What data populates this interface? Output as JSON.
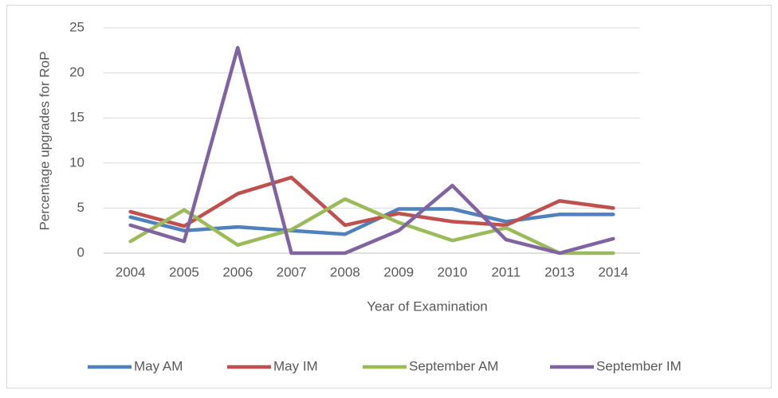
{
  "chart_data": {
    "type": "line",
    "x_label": "Year of Examination",
    "y_label": "Percentage upgrades for RoP",
    "categories": [
      "2004",
      "2005",
      "2006",
      "2007",
      "2008",
      "2009",
      "2010",
      "2011",
      "2013",
      "2014"
    ],
    "series": [
      {
        "name": "May AM",
        "color": "#4f81bd",
        "values": [
          4.0,
          2.5,
          2.9,
          2.5,
          2.1,
          4.9,
          4.9,
          3.5,
          4.3,
          4.3
        ]
      },
      {
        "name": "May IM",
        "color": "#c0504d",
        "values": [
          4.6,
          3.0,
          6.6,
          8.4,
          3.1,
          4.4,
          3.5,
          3.1,
          5.8,
          5.0
        ]
      },
      {
        "name": "September AM",
        "color": "#9bbb59",
        "values": [
          1.3,
          4.8,
          0.9,
          2.6,
          6.0,
          3.4,
          1.4,
          2.8,
          0,
          0
        ]
      },
      {
        "name": "September IM",
        "color": "#8064a2",
        "values": [
          3.1,
          1.3,
          22.8,
          0,
          0,
          2.5,
          7.5,
          1.5,
          0,
          1.6
        ]
      }
    ],
    "ylim": [
      0,
      25
    ],
    "yticks": [
      0,
      5,
      10,
      15,
      20,
      25
    ],
    "grid": true,
    "legend": "bottom"
  }
}
